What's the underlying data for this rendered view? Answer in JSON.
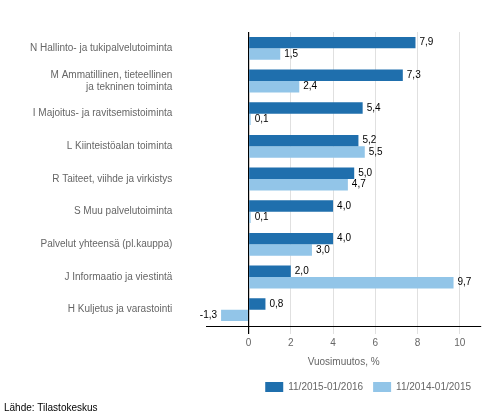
{
  "chart_data": {
    "type": "bar",
    "orientation": "horizontal",
    "categories": [
      "N Hallinto- ja tukipalvelutoiminta",
      "M Ammatillinen, tieteellinen\n   ja tekninen toiminta",
      "I Majoitus- ja ravitsemistoiminta",
      "L Kiinteistöalan toiminta",
      "R Taiteet, viihde ja virkistys",
      "S Muu palvelutoiminta",
      "Palvelut yhteensä (pl.kauppa)",
      "J Informaatio ja viestintä",
      "H Kuljetus ja varastointi"
    ],
    "series": [
      {
        "name": "11/2015-01/2016",
        "color": "#1f6fad",
        "values": [
          7.9,
          7.3,
          5.4,
          5.2,
          5.0,
          4.0,
          4.0,
          2.0,
          0.8
        ],
        "value_labels": [
          "7,9",
          "7,3",
          "5,4",
          "5,2",
          "5,0",
          "4,0",
          "4,0",
          "2,0",
          "0,8"
        ]
      },
      {
        "name": "11/2014-01/2015",
        "color": "#92c5e8",
        "values": [
          1.5,
          2.4,
          0.1,
          5.5,
          4.7,
          0.1,
          3.0,
          9.7,
          -1.3
        ],
        "value_labels": [
          "1,5",
          "2,4",
          "0,1",
          "5,5",
          "4,7",
          "0,1",
          "3,0",
          "9,7",
          "-1,3"
        ]
      }
    ],
    "xlabel": "Vuosimuutos, %",
    "xlim": [
      -2,
      11
    ],
    "xticks": [
      0,
      2,
      4,
      6,
      8,
      10
    ],
    "grid": true,
    "legend": "lower right",
    "data_labels": true,
    "annotations": [
      "Lähde: Tilastokeskus"
    ]
  }
}
